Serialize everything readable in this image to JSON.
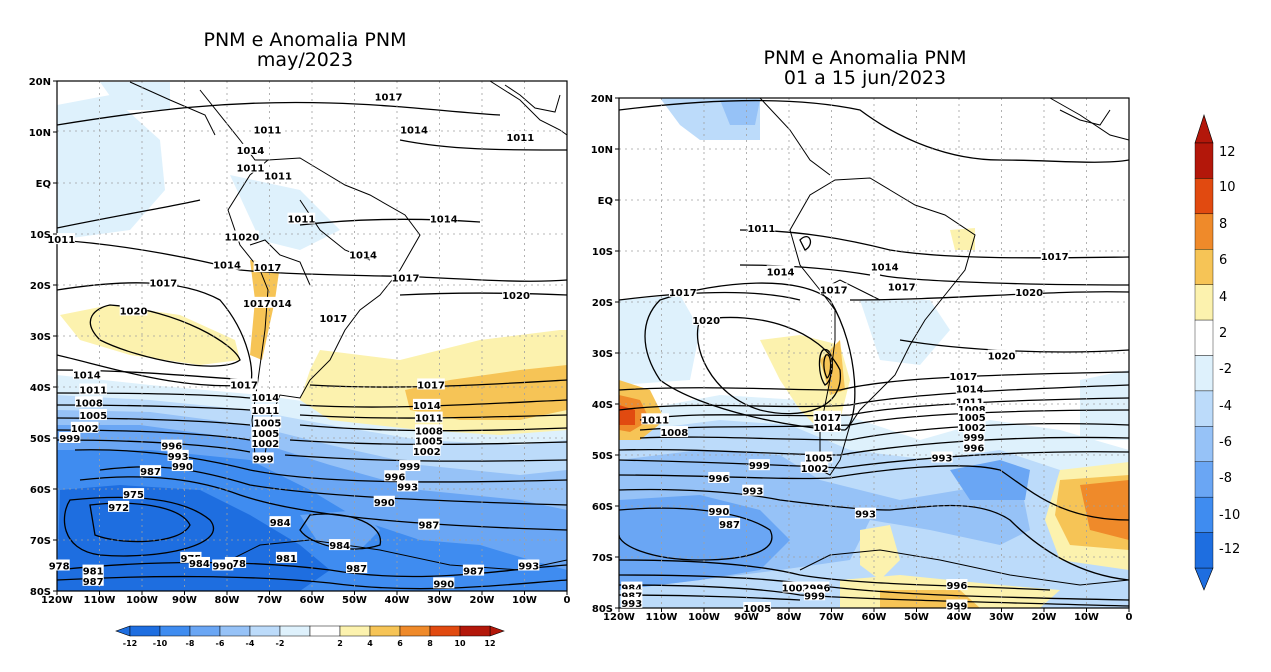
{
  "left": {
    "title1": "PNM e Anomalia PNM",
    "title2": "may/2023",
    "lat_labels": [
      "20N",
      "10N",
      "EQ",
      "10S",
      "20S",
      "30S",
      "40S",
      "50S",
      "60S",
      "70S",
      "80S"
    ],
    "lon_labels": [
      "120W",
      "110W",
      "100W",
      "90W",
      "80W",
      "70W",
      "60W",
      "50W",
      "40W",
      "30W",
      "20W",
      "10W",
      "0"
    ],
    "contour_labels": [
      {
        "v": "1017",
        "lon": -42,
        "lat": 17
      },
      {
        "v": "1014",
        "lon": -36,
        "lat": 10.5
      },
      {
        "v": "1011",
        "lon": -70.5,
        "lat": 10.5
      },
      {
        "v": "1014",
        "lon": -74.5,
        "lat": 6.5
      },
      {
        "v": "1011",
        "lon": -74.5,
        "lat": 3
      },
      {
        "v": "1011",
        "lon": -68,
        "lat": 1.5
      },
      {
        "v": "1011",
        "lon": -11,
        "lat": 9
      },
      {
        "v": "1011",
        "lon": -62.5,
        "lat": -7
      },
      {
        "v": "1014",
        "lon": -29,
        "lat": -7
      },
      {
        "v": "1011",
        "lon": -119,
        "lat": -11
      },
      {
        "v": "11020",
        "lon": -76.5,
        "lat": -10.5
      },
      {
        "v": "1014",
        "lon": -80,
        "lat": -16
      },
      {
        "v": "1014",
        "lon": -48,
        "lat": -14
      },
      {
        "v": "1017",
        "lon": -70.5,
        "lat": -16.5
      },
      {
        "v": "1017",
        "lon": -38,
        "lat": -18.5
      },
      {
        "v": "1017",
        "lon": -95,
        "lat": -19.5
      },
      {
        "v": "1020",
        "lon": -12,
        "lat": -22
      },
      {
        "v": "1017014",
        "lon": -70.5,
        "lat": -23.5
      },
      {
        "v": "1020",
        "lon": -102,
        "lat": -25
      },
      {
        "v": "1017",
        "lon": -55,
        "lat": -26.5
      },
      {
        "v": "1014",
        "lon": -113,
        "lat": -37.5
      },
      {
        "v": "1017",
        "lon": -76,
        "lat": -39.5
      },
      {
        "v": "1017",
        "lon": -32,
        "lat": -39.5
      },
      {
        "v": "1011",
        "lon": -111.5,
        "lat": -40.5
      },
      {
        "v": "1014",
        "lon": -71,
        "lat": -42
      },
      {
        "v": "1008",
        "lon": -112.5,
        "lat": -43
      },
      {
        "v": "1014",
        "lon": -33,
        "lat": -43.5
      },
      {
        "v": "1011",
        "lon": -71,
        "lat": -44.5
      },
      {
        "v": "1005",
        "lon": -111.5,
        "lat": -45.5
      },
      {
        "v": "1011",
        "lon": -32.5,
        "lat": -46
      },
      {
        "v": "1005",
        "lon": -70.5,
        "lat": -47
      },
      {
        "v": "1002",
        "lon": -113.5,
        "lat": -48
      },
      {
        "v": "1005",
        "lon": -71,
        "lat": -49
      },
      {
        "v": "1008",
        "lon": -32.5,
        "lat": -48.5
      },
      {
        "v": "999",
        "lon": -117,
        "lat": -50
      },
      {
        "v": "1005",
        "lon": -32.5,
        "lat": -50.5
      },
      {
        "v": "1002",
        "lon": -71,
        "lat": -51
      },
      {
        "v": "996",
        "lon": -93,
        "lat": -51.5
      },
      {
        "v": "1002",
        "lon": -33,
        "lat": -52.5
      },
      {
        "v": "993",
        "lon": -91.5,
        "lat": -53.5
      },
      {
        "v": "999",
        "lon": -71.5,
        "lat": -54
      },
      {
        "v": "990",
        "lon": -90.5,
        "lat": -55.5
      },
      {
        "v": "999",
        "lon": -37,
        "lat": -55.5
      },
      {
        "v": "987",
        "lon": -98,
        "lat": -56.5
      },
      {
        "v": "996",
        "lon": -40.5,
        "lat": -57.5
      },
      {
        "v": "993",
        "lon": -37.5,
        "lat": -59.5
      },
      {
        "v": "975",
        "lon": -102,
        "lat": -61
      },
      {
        "v": "990",
        "lon": -43,
        "lat": -62.5
      },
      {
        "v": "972",
        "lon": -105.5,
        "lat": -63.5
      },
      {
        "v": "984",
        "lon": -67.5,
        "lat": -66.5
      },
      {
        "v": "987",
        "lon": -32.5,
        "lat": -67
      },
      {
        "v": "984",
        "lon": -53.5,
        "lat": -71
      },
      {
        "v": "975",
        "lon": -88.5,
        "lat": -73.5
      },
      {
        "v": "981",
        "lon": -66,
        "lat": -73.5
      },
      {
        "v": "984",
        "lon": -86.5,
        "lat": -74.5
      },
      {
        "v": "978",
        "lon": -78,
        "lat": -74.5
      },
      {
        "v": "990",
        "lon": -81,
        "lat": -75
      },
      {
        "v": "978",
        "lon": -119.5,
        "lat": -75
      },
      {
        "v": "987",
        "lon": -49.5,
        "lat": -75.5
      },
      {
        "v": "993",
        "lon": -9,
        "lat": -75
      },
      {
        "v": "981",
        "lon": -111.5,
        "lat": -76
      },
      {
        "v": "987",
        "lon": -22,
        "lat": -76
      },
      {
        "v": "987",
        "lon": -111.5,
        "lat": -78
      },
      {
        "v": "990",
        "lon": -29,
        "lat": -78.5
      }
    ],
    "colorbar": {
      "labels": [
        "-12",
        "-10",
        "-8",
        "-6",
        "-4",
        "-2",
        "2",
        "4",
        "6",
        "8",
        "10",
        "12"
      ]
    }
  },
  "right": {
    "title1": "PNM e Anomalia PNM",
    "title2": "01 a 15 jun/2023",
    "lat_labels": [
      "20N",
      "10N",
      "EQ",
      "10S",
      "20S",
      "30S",
      "40S",
      "50S",
      "60S",
      "70S",
      "80S"
    ],
    "lon_labels": [
      "120W",
      "110W",
      "100W",
      "90W",
      "80W",
      "70W",
      "60W",
      "50W",
      "40W",
      "30W",
      "20W",
      "10W",
      "0"
    ],
    "contour_labels": [
      {
        "v": "1011",
        "lon": -86.5,
        "lat": -5.5
      },
      {
        "v": "1014",
        "lon": -82,
        "lat": -14
      },
      {
        "v": "1017",
        "lon": -69.5,
        "lat": -17.5
      },
      {
        "v": "1014",
        "lon": -57.5,
        "lat": -13
      },
      {
        "v": "1017",
        "lon": -53.5,
        "lat": -17
      },
      {
        "v": "1017",
        "lon": -17.5,
        "lat": -11
      },
      {
        "v": "1017",
        "lon": -105,
        "lat": -18
      },
      {
        "v": "1020",
        "lon": -23.5,
        "lat": -18
      },
      {
        "v": "1020",
        "lon": -99.5,
        "lat": -23.5
      },
      {
        "v": "1020",
        "lon": -30,
        "lat": -30.5
      },
      {
        "v": "1017",
        "lon": -39,
        "lat": -34.5
      },
      {
        "v": "1014",
        "lon": -37.5,
        "lat": -37
      },
      {
        "v": "1011",
        "lon": -37.5,
        "lat": -39.5
      },
      {
        "v": "1008",
        "lon": -37,
        "lat": -41
      },
      {
        "v": "1011",
        "lon": -111.5,
        "lat": -43
      },
      {
        "v": "1005",
        "lon": -37,
        "lat": -42.5
      },
      {
        "v": "1017",
        "lon": -71,
        "lat": -42.5
      },
      {
        "v": "1008",
        "lon": -107,
        "lat": -45.5
      },
      {
        "v": "1014",
        "lon": -71,
        "lat": -44.5
      },
      {
        "v": "1002",
        "lon": -37,
        "lat": -44.5
      },
      {
        "v": "999",
        "lon": -36.5,
        "lat": -46.5
      },
      {
        "v": "996",
        "lon": -36.5,
        "lat": -48.5
      },
      {
        "v": "1005",
        "lon": -73,
        "lat": -50.5
      },
      {
        "v": "993",
        "lon": -44,
        "lat": -50.5
      },
      {
        "v": "999",
        "lon": -87,
        "lat": -52
      },
      {
        "v": "1002",
        "lon": -74,
        "lat": -52.5
      },
      {
        "v": "996",
        "lon": -96.5,
        "lat": -54.5
      },
      {
        "v": "993",
        "lon": -88.5,
        "lat": -57
      },
      {
        "v": "990",
        "lon": -96.5,
        "lat": -61
      },
      {
        "v": "993",
        "lon": -62,
        "lat": -61.5
      },
      {
        "v": "987",
        "lon": -94,
        "lat": -63.5
      },
      {
        "v": "996",
        "lon": -40.5,
        "lat": -75.5
      },
      {
        "v": "984",
        "lon": -117,
        "lat": -76
      },
      {
        "v": "987",
        "lon": -117,
        "lat": -77.5
      },
      {
        "v": "1002996",
        "lon": -76,
        "lat": -76
      },
      {
        "v": "999",
        "lon": -74,
        "lat": -77.5
      },
      {
        "v": "993",
        "lon": -117,
        "lat": -79
      },
      {
        "v": "999",
        "lon": -40.5,
        "lat": -79.5
      },
      {
        "v": "1005",
        "lon": -87.5,
        "lat": -80
      }
    ],
    "colorbar": {
      "labels": [
        "12",
        "10",
        "8",
        "6",
        "4",
        "2",
        "-2",
        "-4",
        "-6",
        "-8",
        "-10",
        "-12"
      ]
    }
  },
  "colors": {
    "scale": [
      "#1e6ee0",
      "#3f8cf0",
      "#6aa6f4",
      "#96c2f7",
      "#bcdbfa",
      "#def1fc",
      "#ffffff",
      "#fcf2ae",
      "#f6c456",
      "#ef8a2a",
      "#e14a10",
      "#b3170a"
    ]
  }
}
